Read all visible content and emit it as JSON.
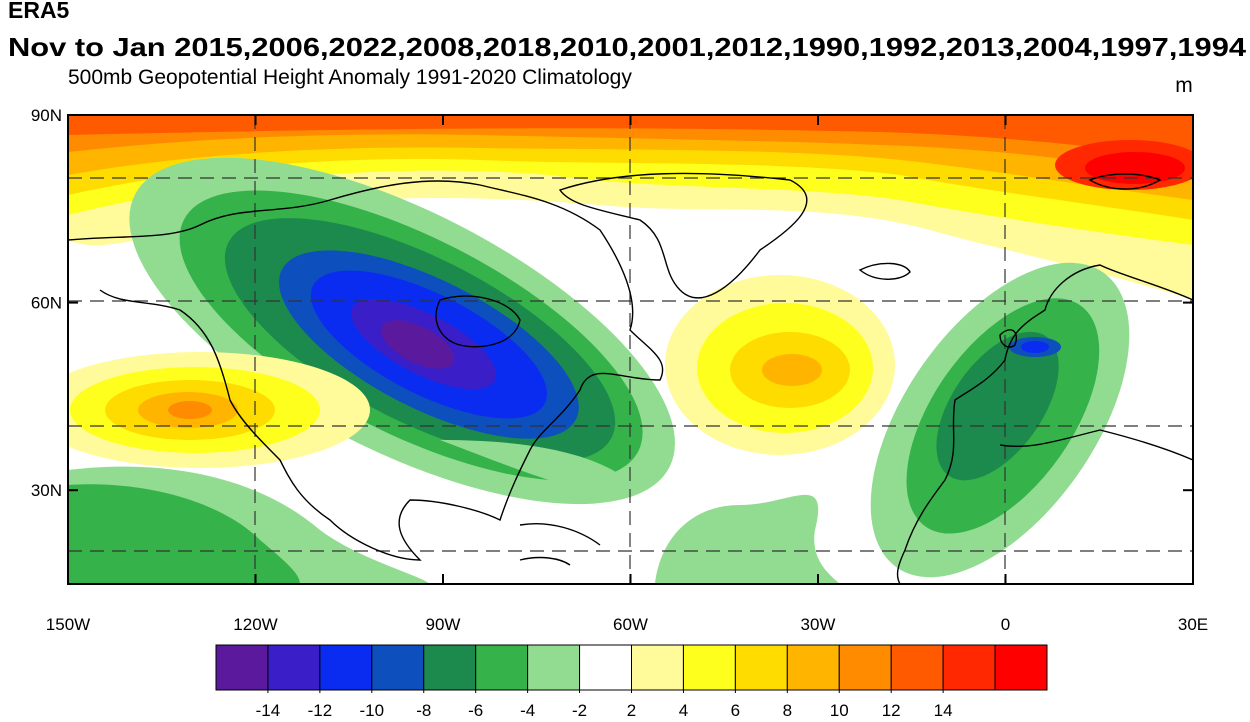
{
  "map_data": {
    "title": "ERA5",
    "subtitle": "Nov to Jan 2015,2006,2022,2008,2018,2010,2001,2012,1990,1992,2013,2004,1997,1994",
    "left_string": "500mb Geopotential Height Anomaly  1991-2020 Climatology",
    "units": "m",
    "xlim": [
      -150,
      30
    ],
    "ylim": [
      15,
      90
    ],
    "xticks": [
      {
        "value": -150,
        "label": "150W"
      },
      {
        "value": -120,
        "label": "120W"
      },
      {
        "value": -90,
        "label": "90W"
      },
      {
        "value": -60,
        "label": "60W"
      },
      {
        "value": -30,
        "label": "30W"
      },
      {
        "value": 0,
        "label": "0"
      },
      {
        "value": 30,
        "label": "30E"
      }
    ],
    "yticks": [
      {
        "value": 90,
        "label": "90N"
      },
      {
        "value": 60,
        "label": "60N"
      },
      {
        "value": 30,
        "label": "30N"
      }
    ],
    "levels": [
      -14,
      -12,
      -10,
      -8,
      -6,
      -4,
      -2,
      2,
      4,
      6,
      8,
      10,
      12,
      14
    ],
    "colors": [
      "#5b1a9e",
      "#3a1fc8",
      "#0a2cf0",
      "#0d4fbd",
      "#1c8a4c",
      "#35b24a",
      "#92dc92",
      "#ffffff",
      "#fffa9a",
      "#ffff1e",
      "#ffdc00",
      "#ffb400",
      "#ff8c00",
      "#ff5a00",
      "#ff2800",
      "#ff0000"
    ]
  }
}
